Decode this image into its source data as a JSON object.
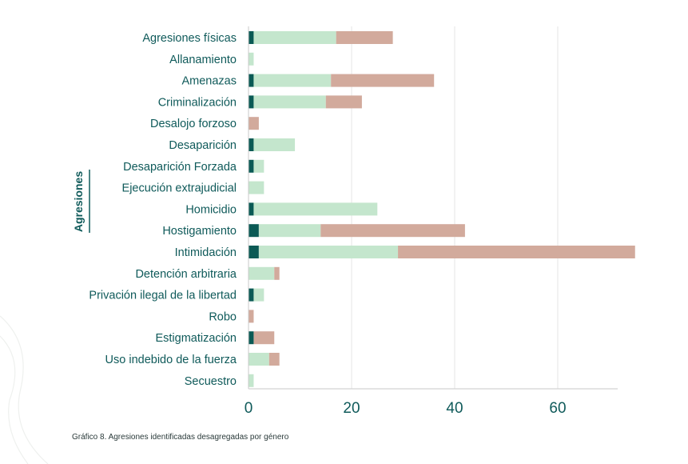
{
  "chart_data": {
    "type": "bar",
    "orientation": "horizontal",
    "stacked": true,
    "ylabel": "Agresiones",
    "categories": [
      "Agresiones físicas",
      "Allanamiento",
      "Amenazas",
      "Criminalización",
      "Desalojo forzoso",
      "Desaparición",
      "Desaparición Forzada",
      "Ejecución extrajudicial",
      "Homicidio",
      "Hostigamiento",
      "Intimidación",
      "Detención arbitraria",
      "Privación ilegal de la libertad",
      "Robo",
      "Estigmatización",
      "Uso indebido de la fuerza",
      "Secuestro"
    ],
    "series": [
      {
        "color": "#0b5a55",
        "values": [
          1,
          0,
          1,
          1,
          0,
          1,
          1,
          0,
          1,
          2,
          2,
          0,
          1,
          0,
          1,
          0,
          0
        ]
      },
      {
        "color": "#c4e6cd",
        "values": [
          16,
          1,
          15,
          14,
          0,
          8,
          2,
          3,
          24,
          12,
          27,
          5,
          2,
          0,
          0,
          4,
          1
        ]
      },
      {
        "color": "#d2aa9c",
        "values": [
          11,
          0,
          20,
          7,
          2,
          0,
          0,
          0,
          0,
          28,
          46,
          1,
          0,
          1,
          4,
          2,
          0
        ]
      }
    ],
    "xticks": [
      0,
      20,
      40,
      60
    ],
    "xlim": [
      0,
      71
    ],
    "grid": "vertical",
    "legend": "none"
  },
  "caption": "Gráfico 8. Agresiones identificadas desagregadas por género"
}
